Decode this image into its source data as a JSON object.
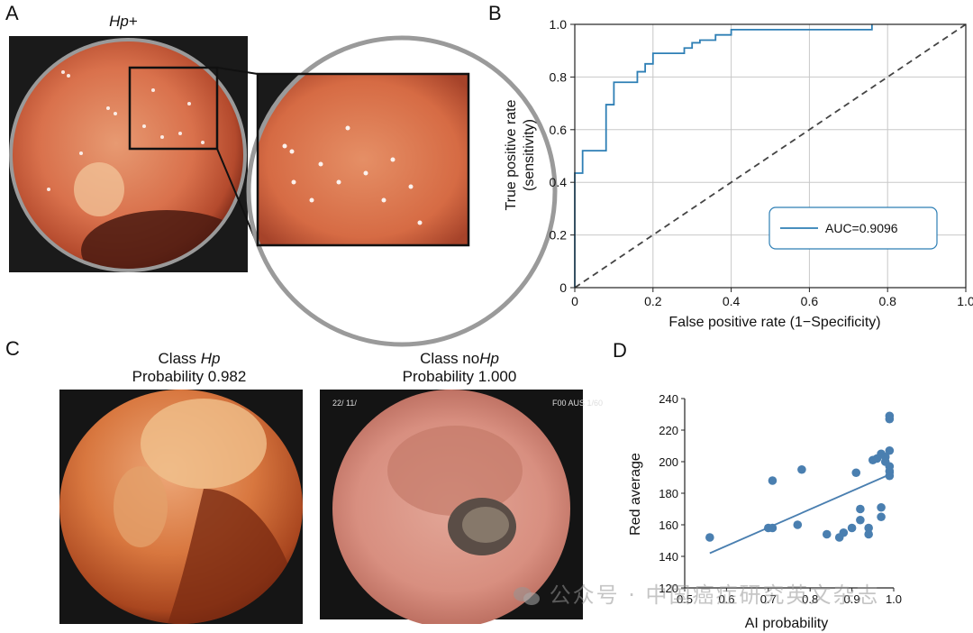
{
  "panels": {
    "a": {
      "letter": "A",
      "title_italic": "Hp",
      "title_suffix": "+"
    },
    "b": {
      "letter": "B"
    },
    "c": {
      "letter": "C",
      "left": {
        "class_prefix": "Class ",
        "class_italic": "Hp",
        "class_suffix": "",
        "probability": "Probability 0.982"
      },
      "right": {
        "class_prefix": "Class no",
        "class_italic": "Hp",
        "class_suffix": "",
        "probability": "Probability 1.000"
      },
      "overlay_text_left": "22/\n11/",
      "overlay_text_right": "F00\nAUS\n1/60"
    },
    "d": {
      "letter": "D"
    }
  },
  "chart_data": [
    {
      "id": "roc",
      "type": "line",
      "title": "",
      "xlabel": "False positive rate (1−Specificity)",
      "ylabel_line1": "True positive rate",
      "ylabel_line2": "(sensitivity)",
      "xlim": [
        0,
        1.0
      ],
      "ylim": [
        0,
        1.0
      ],
      "xticks": [
        0,
        0.2,
        0.4,
        0.6,
        0.8,
        1.0
      ],
      "xtick_labels": [
        "0",
        "0.2",
        "0.4",
        "0.6",
        "0.8",
        "1.0"
      ],
      "yticks": [
        0,
        0.2,
        0.4,
        0.6,
        0.8,
        1.0
      ],
      "ytick_labels": [
        "0",
        "0.2",
        "0.4",
        "0.6",
        "0.8",
        "1.0"
      ],
      "grid": true,
      "legend": {
        "label": "AUC=0.9096",
        "placement": "lower-right"
      },
      "series": [
        {
          "name": "ROC",
          "color": "#2e7fb5",
          "x": [
            0,
            0,
            0.02,
            0.02,
            0.08,
            0.08,
            0.1,
            0.1,
            0.16,
            0.16,
            0.18,
            0.18,
            0.2,
            0.2,
            0.28,
            0.28,
            0.3,
            0.3,
            0.32,
            0.32,
            0.34,
            0.34,
            0.36,
            0.36,
            0.4,
            0.4,
            0.76,
            0.76
          ],
          "y": [
            0,
            0.435,
            0.435,
            0.52,
            0.52,
            0.695,
            0.695,
            0.78,
            0.78,
            0.82,
            0.82,
            0.85,
            0.85,
            0.89,
            0.89,
            0.91,
            0.91,
            0.93,
            0.93,
            0.94,
            0.94,
            0.94,
            0.94,
            0.96,
            0.96,
            0.98,
            0.98,
            1.0
          ]
        },
        {
          "name": "chance",
          "color": "#444444",
          "dashed": true,
          "x": [
            0,
            1.0
          ],
          "y": [
            0,
            1.0
          ]
        }
      ]
    },
    {
      "id": "scatter",
      "type": "scatter",
      "title": "",
      "xlabel": "AI probability",
      "ylabel": "Red average",
      "xlim": [
        0.5,
        1.0
      ],
      "ylim": [
        120,
        240
      ],
      "xticks": [
        0.5,
        0.6,
        0.7,
        0.8,
        0.9,
        1.0
      ],
      "xtick_labels": [
        "0.5",
        "0.6",
        "0.7",
        "0.8",
        "0.9",
        "1.0"
      ],
      "yticks": [
        120,
        140,
        160,
        180,
        200,
        220,
        240
      ],
      "ytick_labels": [
        "120",
        "140",
        "160",
        "180",
        "200",
        "220",
        "240"
      ],
      "grid": false,
      "color": "#4a7fb0",
      "points": [
        {
          "x": 0.56,
          "y": 152
        },
        {
          "x": 0.7,
          "y": 158
        },
        {
          "x": 0.71,
          "y": 158
        },
        {
          "x": 0.71,
          "y": 188
        },
        {
          "x": 0.77,
          "y": 160
        },
        {
          "x": 0.78,
          "y": 195
        },
        {
          "x": 0.84,
          "y": 154
        },
        {
          "x": 0.87,
          "y": 152
        },
        {
          "x": 0.88,
          "y": 155
        },
        {
          "x": 0.9,
          "y": 158
        },
        {
          "x": 0.91,
          "y": 193
        },
        {
          "x": 0.92,
          "y": 170
        },
        {
          "x": 0.92,
          "y": 163
        },
        {
          "x": 0.94,
          "y": 154
        },
        {
          "x": 0.94,
          "y": 158
        },
        {
          "x": 0.95,
          "y": 201
        },
        {
          "x": 0.97,
          "y": 171
        },
        {
          "x": 0.97,
          "y": 165
        },
        {
          "x": 0.97,
          "y": 205
        },
        {
          "x": 0.98,
          "y": 200
        },
        {
          "x": 0.99,
          "y": 229
        },
        {
          "x": 0.99,
          "y": 227
        },
        {
          "x": 0.99,
          "y": 207
        },
        {
          "x": 0.99,
          "y": 197
        },
        {
          "x": 0.99,
          "y": 194
        },
        {
          "x": 0.99,
          "y": 191
        },
        {
          "x": 0.98,
          "y": 203
        },
        {
          "x": 0.96,
          "y": 202
        }
      ],
      "trendline": {
        "x": [
          0.56,
          1.0
        ],
        "y": [
          142,
          193
        ]
      }
    }
  ],
  "watermark": {
    "text": "公众号 · 中国癌症研究英文杂志"
  }
}
